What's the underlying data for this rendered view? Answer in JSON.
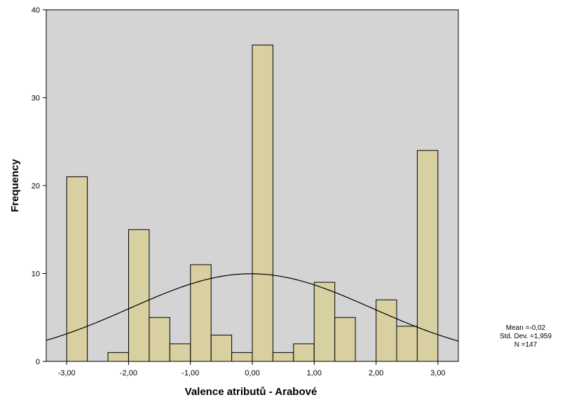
{
  "chart_data": {
    "type": "bar",
    "subtype": "histogram",
    "xlabel": "Valence atributů - Arabové",
    "ylabel": "Frequency",
    "xlim": [
      -3.33,
      3.33
    ],
    "ylim": [
      0,
      40
    ],
    "x_ticks": [
      -3,
      -2,
      -1,
      0,
      1,
      2,
      3
    ],
    "x_tick_labels": [
      "-3,00",
      "-2,00",
      "-1,00",
      "0,00",
      "1,00",
      "2,00",
      "3,00"
    ],
    "y_ticks": [
      0,
      10,
      20,
      30,
      40
    ],
    "y_tick_labels": [
      "0",
      "10",
      "20",
      "30",
      "40"
    ],
    "bin_width": 0.333,
    "bins": [
      {
        "x": -2.833,
        "value": 21
      },
      {
        "x": -2.5,
        "value": 0
      },
      {
        "x": -2.167,
        "value": 1
      },
      {
        "x": -1.833,
        "value": 15
      },
      {
        "x": -1.5,
        "value": 5
      },
      {
        "x": -1.167,
        "value": 2
      },
      {
        "x": -0.833,
        "value": 11
      },
      {
        "x": -0.5,
        "value": 3
      },
      {
        "x": -0.167,
        "value": 1
      },
      {
        "x": 0.167,
        "value": 36
      },
      {
        "x": 0.5,
        "value": 1
      },
      {
        "x": 0.833,
        "value": 2
      },
      {
        "x": 1.167,
        "value": 9
      },
      {
        "x": 1.5,
        "value": 5
      },
      {
        "x": 1.833,
        "value": 0
      },
      {
        "x": 2.167,
        "value": 7
      },
      {
        "x": 2.5,
        "value": 4
      },
      {
        "x": 2.833,
        "value": 24
      }
    ],
    "normal_curve": {
      "mean": -0.02,
      "sd": 1.959,
      "n": 147
    },
    "grid": false,
    "colors": {
      "plot_background": "#d4d4d4",
      "bar_fill": "#d8d0a0",
      "bar_stroke": "#000000",
      "curve": "#000000"
    },
    "stats": {
      "mean_label": "Mean =-0,02",
      "sd_label": "Std. Dev. =1,959",
      "n_label": "N =147"
    }
  }
}
